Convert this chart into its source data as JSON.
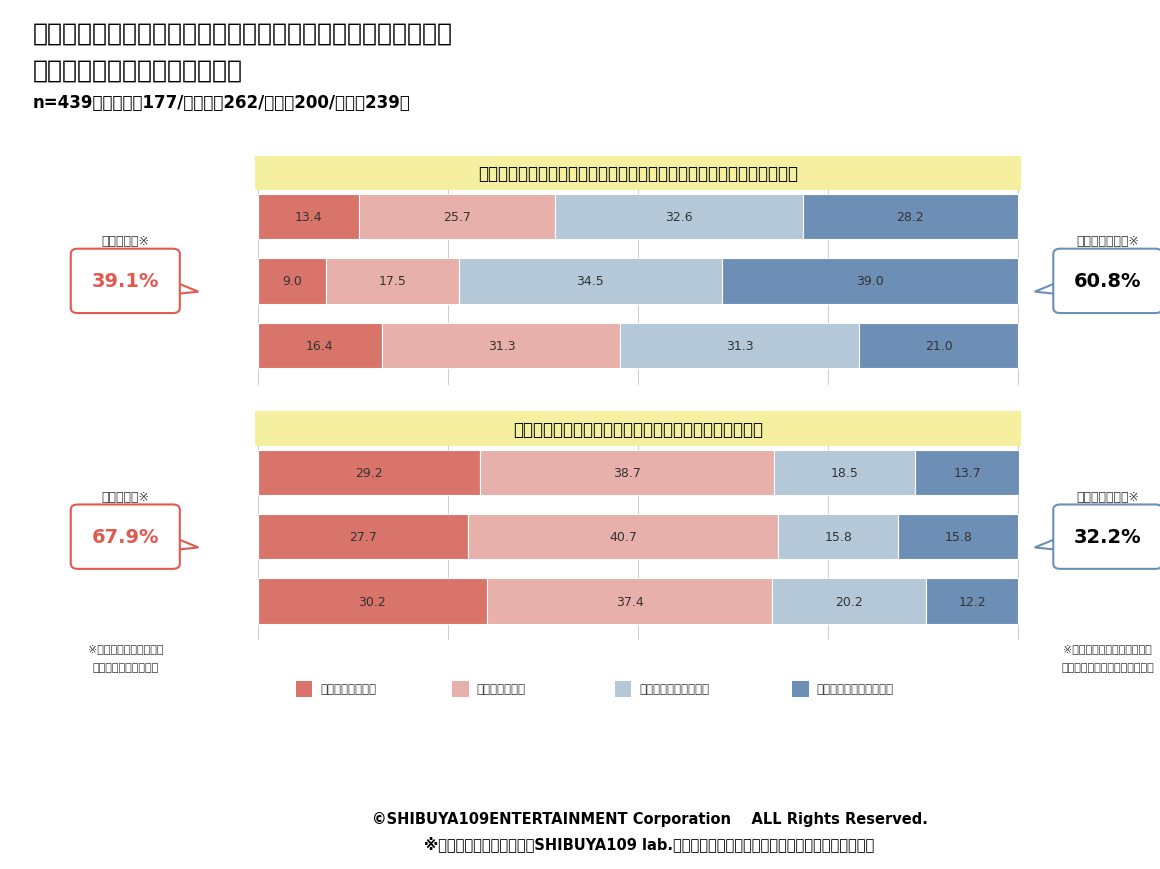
{
  "title_line1": "あなたの所属する部活動に関して、あなたにあてはまるものを",
  "title_line2": "教えてください。（単一回答）",
  "subtitle": "n=439（文化部：177/運動部：262/男性：200/女性：239）",
  "section1_title": "たとえチームに亀裂が入ったとしても実績を残す努力をすべきだと思う",
  "section2_title": "チーム実績よりもチームの調和や仲の良さを重視したい",
  "section1_data": [
    [
      13.4,
      25.7,
      32.6,
      28.2
    ],
    [
      9.0,
      17.5,
      34.5,
      39.0
    ],
    [
      16.4,
      31.3,
      31.3,
      21.0
    ]
  ],
  "section2_data": [
    [
      29.2,
      38.7,
      18.5,
      13.7
    ],
    [
      27.7,
      40.7,
      15.8,
      15.8
    ],
    [
      30.2,
      37.4,
      20.2,
      12.2
    ]
  ],
  "colors": [
    "#d9746a",
    "#e8b0aa",
    "#b5c8d8",
    "#6d8fb5"
  ],
  "legend_labels": [
    "とてもあてはまる",
    "ややあてはまる",
    "あまりあてはまらない",
    "まったくあてはまらない"
  ],
  "section1_atehamaru": "39.1%",
  "section1_atehamaranai": "60.8%",
  "section2_atehamaru": "67.9%",
  "section2_atehamaranai": "32.2%",
  "atehamaru_label": "あてはまる※",
  "atehamaranai_label": "あてはまらない※",
  "note_left_1": "※「とてもあてはまる」",
  "note_left_2": "「ややあてはまる」計",
  "note_right_1": "※「あまりあてはまらない」",
  "note_right_2": "「まったくあてはまらない」計",
  "copyright": "©SHIBUYA109ENTERTAINMENT Corporation    ALL Rights Reserved.",
  "disclaimer": "※ご使用の際は、出典元がSHIBUYA109 lab.である旨を明記くださいますようお願いいたします",
  "section_title_bg": "#f5f0a0",
  "atehamaru_color": "#e05a50",
  "atehamaranai_color": "#6d8fb5",
  "background_color": "#ffffff",
  "grid_color": "#cccccc",
  "text_color": "#333333"
}
